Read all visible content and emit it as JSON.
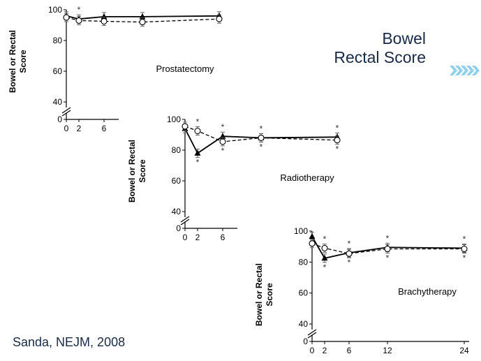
{
  "slide": {
    "title_line1": "Bowel",
    "title_line2": "Rectal Score",
    "citation": "Sanda, NEJM, 2008"
  },
  "colors": {
    "title": "#1a2a44",
    "axis": "#000000",
    "chevron": "#8fd0ea"
  },
  "chart_data": [
    {
      "type": "line",
      "label": "Prostatectomy",
      "ylabel": "Bowel or Rectal Score",
      "yticks": [
        0,
        40,
        60,
        80,
        100
      ],
      "xticks": [
        0,
        2,
        6
      ],
      "ylim": [
        0,
        100
      ],
      "ybreak": [
        0,
        40
      ],
      "series": [
        {
          "marker": "triangle-filled",
          "line": "solid",
          "x": [
            0,
            2,
            6,
            12,
            24
          ],
          "y": [
            96,
            94,
            95.5,
            95.5,
            96
          ]
        },
        {
          "marker": "circle-open",
          "line": "dashed",
          "x": [
            0,
            2,
            6,
            12,
            24
          ],
          "y": [
            95,
            93,
            92.5,
            92,
            94
          ]
        }
      ],
      "significance": [
        {
          "x": 2,
          "mark": "*"
        }
      ]
    },
    {
      "type": "line",
      "label": "Radiotherapy",
      "ylabel": "Bowel or Rectal Score",
      "yticks": [
        0,
        40,
        60,
        80,
        100
      ],
      "xticks": [
        0,
        2,
        6
      ],
      "ylim": [
        0,
        100
      ],
      "ybreak": [
        0,
        40
      ],
      "series": [
        {
          "marker": "triangle-filled",
          "line": "solid",
          "x": [
            0,
            2,
            6,
            12,
            24
          ],
          "y": [
            94,
            78,
            89,
            88,
            88.5
          ]
        },
        {
          "marker": "circle-open",
          "line": "dashed",
          "x": [
            0,
            2,
            6,
            12,
            24
          ],
          "y": [
            95.5,
            92.5,
            85.5,
            88,
            86.5
          ]
        }
      ],
      "significance": [
        {
          "x": 2,
          "mark": "*"
        },
        {
          "x": 6,
          "mark": "*"
        },
        {
          "x": 12,
          "mark": "*"
        },
        {
          "x": 24,
          "mark": "*"
        }
      ]
    },
    {
      "type": "line",
      "label": "Brachytherapy",
      "ylabel": "Bowel or Rectal Score",
      "yticks": [
        0,
        40,
        60,
        80,
        100
      ],
      "xticks": [
        0,
        2,
        6,
        12,
        24
      ],
      "ylim": [
        0,
        100
      ],
      "ybreak": [
        0,
        40
      ],
      "series": [
        {
          "marker": "triangle-filled",
          "line": "solid",
          "x": [
            0,
            2,
            6,
            12,
            24
          ],
          "y": [
            96.5,
            82.5,
            86,
            89.5,
            89
          ]
        },
        {
          "marker": "circle-open",
          "line": "dashed",
          "x": [
            0,
            2,
            6,
            12,
            24
          ],
          "y": [
            92,
            89,
            85.5,
            88.5,
            88.5
          ]
        }
      ],
      "significance": [
        {
          "x": 2,
          "mark": "*"
        },
        {
          "x": 6,
          "mark": "*"
        },
        {
          "x": 12,
          "mark": "*"
        },
        {
          "x": 24,
          "mark": "*"
        }
      ]
    }
  ]
}
